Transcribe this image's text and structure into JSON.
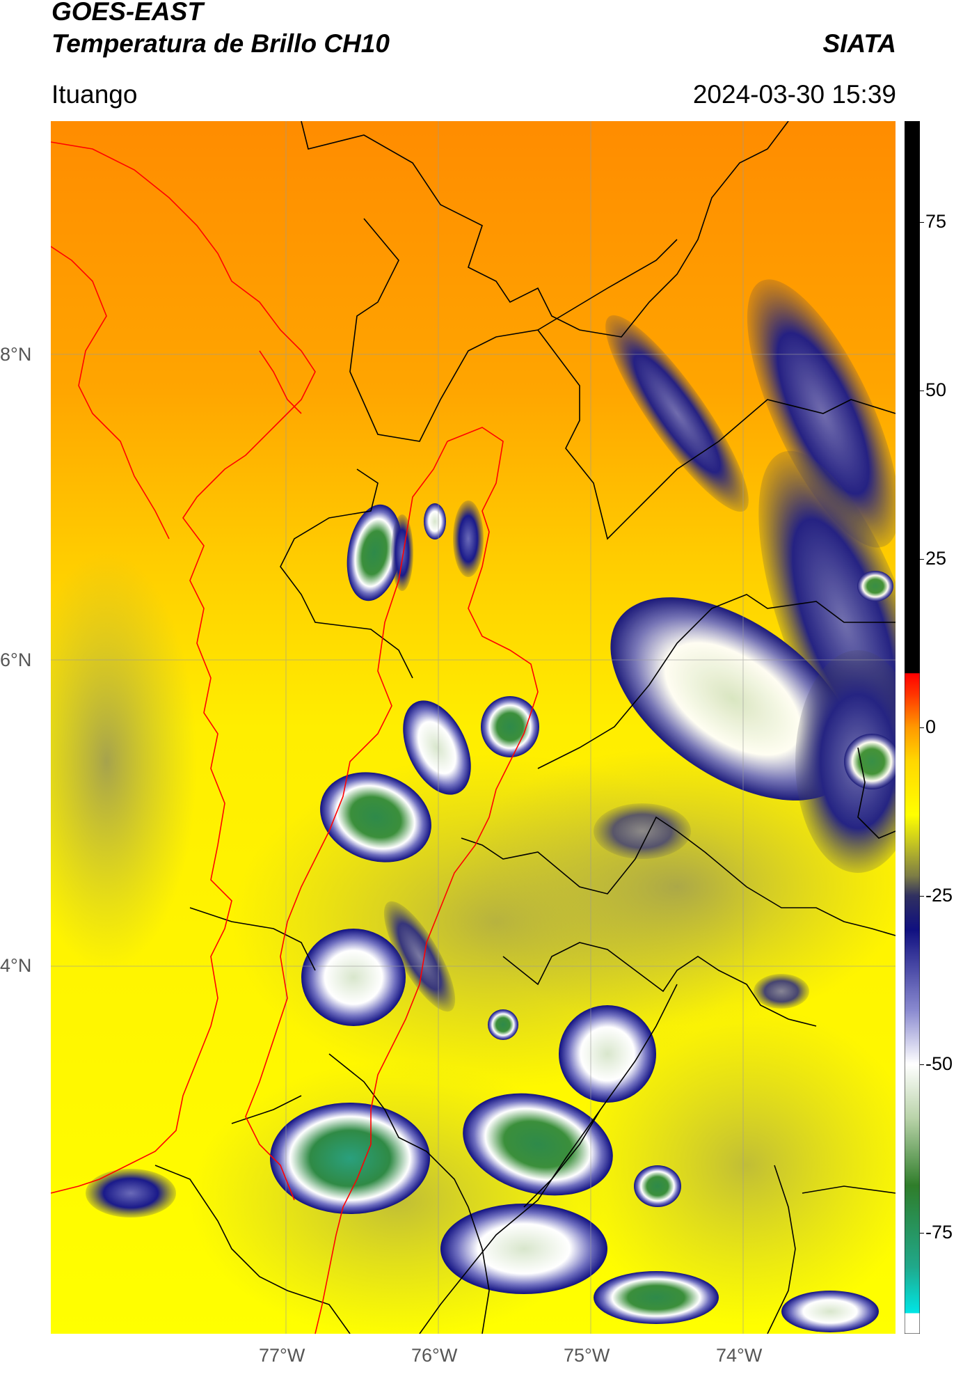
{
  "header": {
    "satellite": "GOES-EAST",
    "product": "Temperatura de Brillo CH10",
    "org": "SIATA",
    "location": "Ituango",
    "datetime": "2024-03-30 15:39"
  },
  "axes": {
    "lat_labels": [
      "8°N",
      "6°N",
      "4°N"
    ],
    "lon_labels": [
      "77°W",
      "76°W",
      "75°W",
      "74°W"
    ]
  },
  "colorbar": {
    "ticks": [
      "75",
      "50",
      "25",
      "0",
      "-25",
      "-50",
      "-75"
    ],
    "tick_values": [
      75,
      50,
      25,
      0,
      -25,
      -50,
      -75
    ],
    "range": [
      -90,
      90
    ],
    "stops": [
      {
        "v": -90,
        "c": "#ffffff"
      },
      {
        "v": -87,
        "c": "#ffffff"
      },
      {
        "v": -86.9,
        "c": "#00e5e5"
      },
      {
        "v": -80,
        "c": "#20a88a"
      },
      {
        "v": -68,
        "c": "#2f7d2a"
      },
      {
        "v": -58,
        "c": "#b9d3a9"
      },
      {
        "v": -50,
        "c": "#ffffff"
      },
      {
        "v": -42,
        "c": "#8a8ad0"
      },
      {
        "v": -30,
        "c": "#101080"
      },
      {
        "v": -25,
        "c": "#303060"
      },
      {
        "v": -22,
        "c": "#7d7d45"
      },
      {
        "v": -17,
        "c": "#c8c820"
      },
      {
        "v": -13,
        "c": "#ffff00"
      },
      {
        "v": -5,
        "c": "#ffd700"
      },
      {
        "v": 0,
        "c": "#ff9900"
      },
      {
        "v": 5,
        "c": "#ff3300"
      },
      {
        "v": 8,
        "c": "#ff0000"
      },
      {
        "v": 8.1,
        "c": "#000000"
      },
      {
        "v": 90,
        "c": "#000000"
      }
    ]
  }
}
